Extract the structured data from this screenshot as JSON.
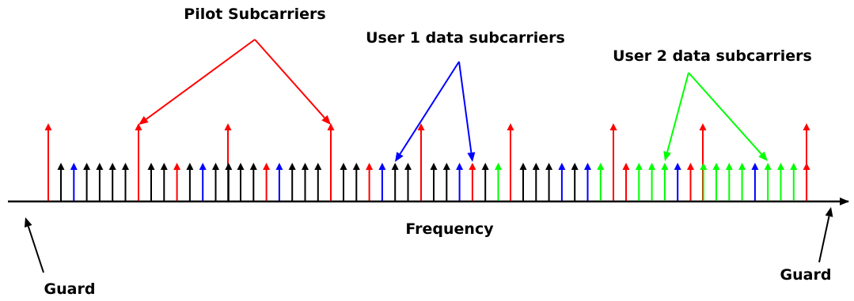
{
  "labels": {
    "pilot": "Pilot Subcarriers",
    "user1": "User 1 data subcarriers",
    "user2": "User 2 data subcarriers",
    "axis": "Frequency",
    "guard_left": "Guard",
    "guard_right": "Guard"
  },
  "colors": {
    "pilot": "#ff0000",
    "user1": "#0000ff",
    "user2": "#00ff00",
    "other": "#000000",
    "axis": "#000000"
  },
  "subcarriers": {
    "pilot": [
      "red",
      "red",
      "red",
      "red",
      "red",
      "red",
      "red",
      "red",
      "red"
    ],
    "data": [
      "black",
      "blue",
      "black",
      "black",
      "black",
      "black",
      "black",
      "black",
      "red",
      "black",
      "blue",
      "black",
      "black",
      "black",
      "black",
      "red",
      "blue",
      "black",
      "black",
      "black",
      "black",
      "black",
      "red",
      "blue",
      "black",
      "black",
      "black",
      "black",
      "blue",
      "red",
      "black",
      "green",
      "black",
      "black",
      "black",
      "blue",
      "black",
      "blue",
      "green",
      "red",
      "green",
      "green",
      "green",
      "blue",
      "red",
      "green",
      "green",
      "green",
      "green",
      "blue",
      "green",
      "green",
      "green",
      "red"
    ]
  }
}
